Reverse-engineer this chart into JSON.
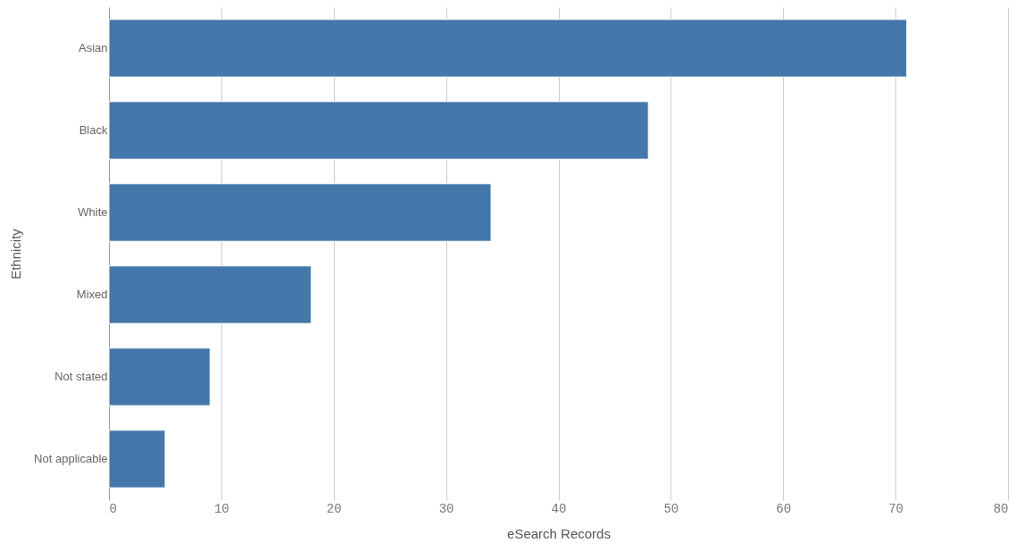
{
  "chart_data": {
    "type": "bar",
    "orientation": "horizontal",
    "xlabel": "eSearch Records",
    "ylabel": "Ethnicity",
    "categories": [
      "Asian",
      "Black",
      "White",
      "Mixed",
      "Not stated",
      "Not applicable"
    ],
    "values": [
      71,
      48,
      34,
      18,
      9,
      5
    ],
    "color": "#4477aa",
    "xlim": [
      0,
      80
    ],
    "xticks": [
      0,
      10,
      20,
      30,
      40,
      50,
      60,
      70,
      80
    ],
    "grid": "x"
  }
}
